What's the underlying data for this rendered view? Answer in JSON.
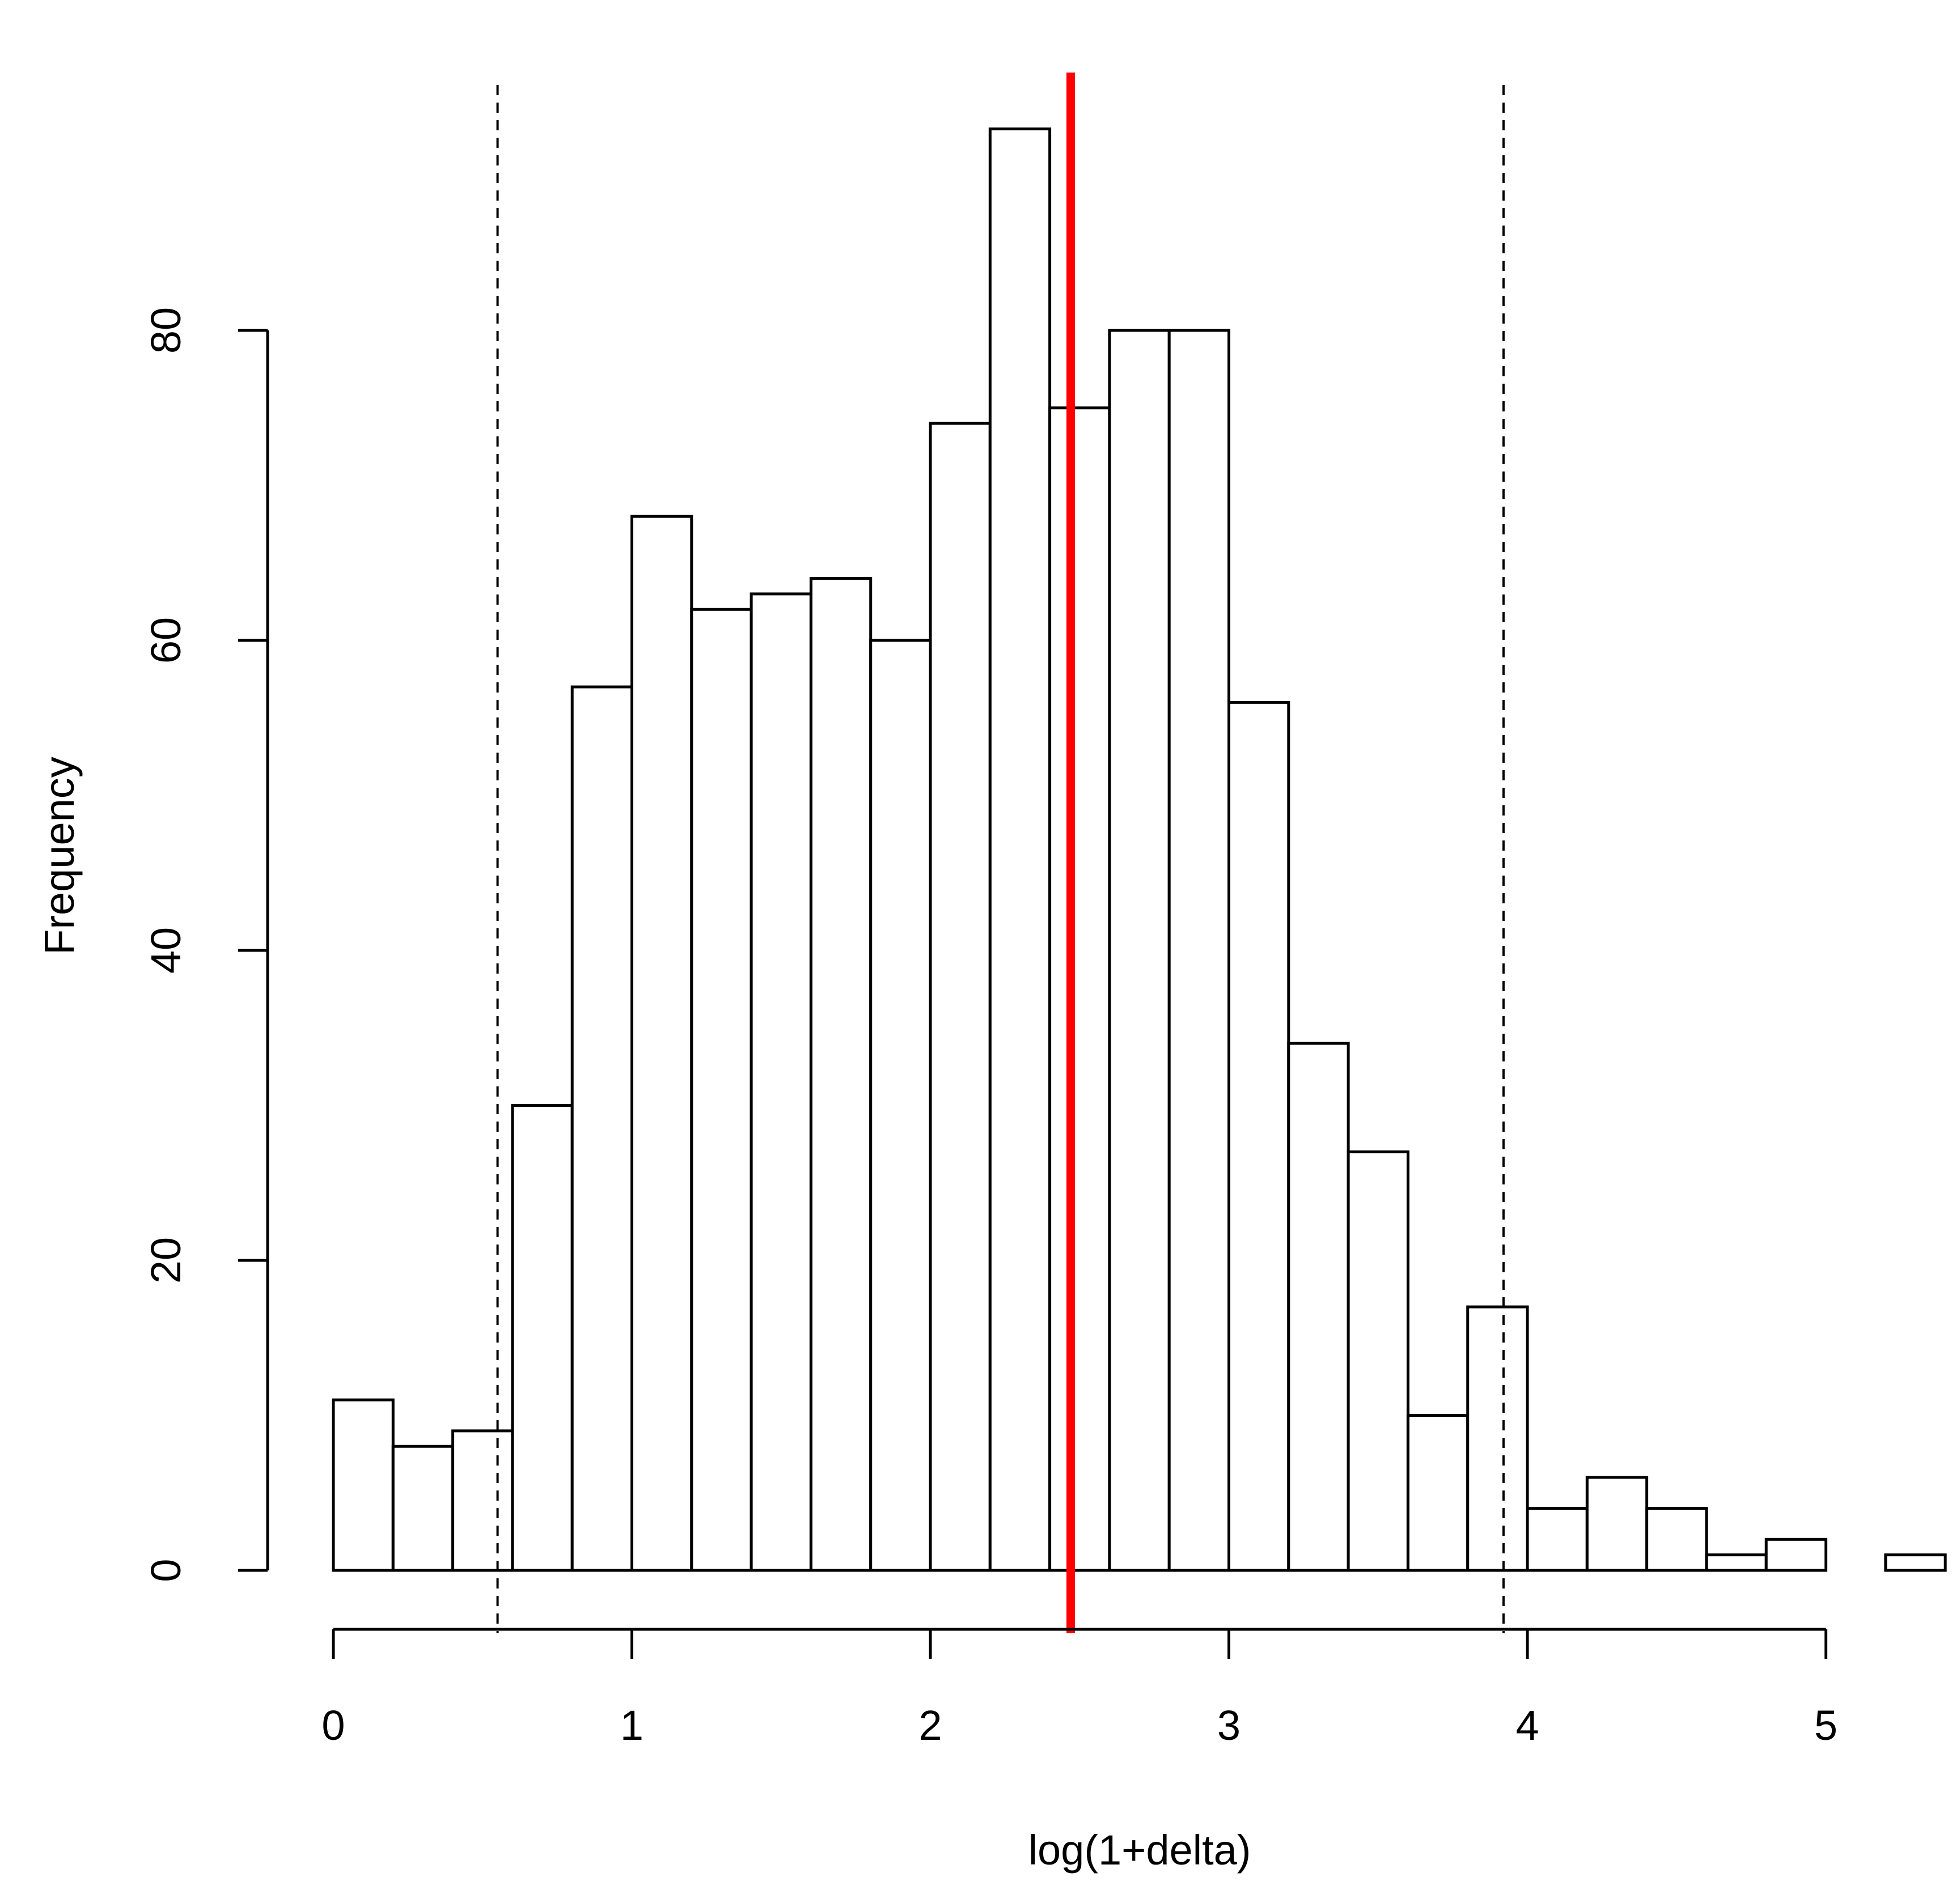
{
  "chart_data": {
    "type": "bar",
    "subtype": "histogram",
    "title": "",
    "xlabel": "log(1+delta)",
    "ylabel": "Frequency",
    "bin_width": 0.2,
    "bins": [
      {
        "start": 0.0,
        "end": 0.2,
        "count": 11
      },
      {
        "start": 0.2,
        "end": 0.4,
        "count": 8
      },
      {
        "start": 0.4,
        "end": 0.6,
        "count": 9
      },
      {
        "start": 0.6,
        "end": 0.8,
        "count": 30
      },
      {
        "start": 0.8,
        "end": 1.0,
        "count": 57
      },
      {
        "start": 1.0,
        "end": 1.2,
        "count": 68
      },
      {
        "start": 1.2,
        "end": 1.4,
        "count": 62
      },
      {
        "start": 1.4,
        "end": 1.6,
        "count": 63
      },
      {
        "start": 1.6,
        "end": 1.8,
        "count": 64
      },
      {
        "start": 1.8,
        "end": 2.0,
        "count": 60
      },
      {
        "start": 2.0,
        "end": 2.2,
        "count": 74
      },
      {
        "start": 2.2,
        "end": 2.4,
        "count": 93
      },
      {
        "start": 2.4,
        "end": 2.6,
        "count": 75
      },
      {
        "start": 2.6,
        "end": 2.8,
        "count": 80
      },
      {
        "start": 2.8,
        "end": 3.0,
        "count": 80
      },
      {
        "start": 3.0,
        "end": 3.2,
        "count": 56
      },
      {
        "start": 3.2,
        "end": 3.4,
        "count": 34
      },
      {
        "start": 3.4,
        "end": 3.6,
        "count": 27
      },
      {
        "start": 3.6,
        "end": 3.8,
        "count": 10
      },
      {
        "start": 3.8,
        "end": 4.0,
        "count": 17
      },
      {
        "start": 4.0,
        "end": 4.2,
        "count": 4
      },
      {
        "start": 4.2,
        "end": 4.4,
        "count": 6
      },
      {
        "start": 4.4,
        "end": 4.6,
        "count": 4
      },
      {
        "start": 4.6,
        "end": 4.8,
        "count": 1
      },
      {
        "start": 4.8,
        "end": 5.0,
        "count": 2
      },
      {
        "start": 5.0,
        "end": 5.2,
        "count": 0
      },
      {
        "start": 5.2,
        "end": 5.4,
        "count": 1
      }
    ],
    "xlim": [
      0,
      5.4
    ],
    "ylim": [
      0,
      93
    ],
    "x_ticks": [
      "0",
      "1",
      "2",
      "3",
      "4",
      "5"
    ],
    "y_ticks": [
      "0",
      "20",
      "40",
      "60",
      "80"
    ],
    "reference_lines": [
      {
        "x": 2.47,
        "style": "solid",
        "color": "#ff0000"
      },
      {
        "x": 0.55,
        "style": "dashed",
        "color": "#000000"
      },
      {
        "x": 3.92,
        "style": "dashed",
        "color": "#000000"
      }
    ],
    "grid": false,
    "legend": "none"
  }
}
